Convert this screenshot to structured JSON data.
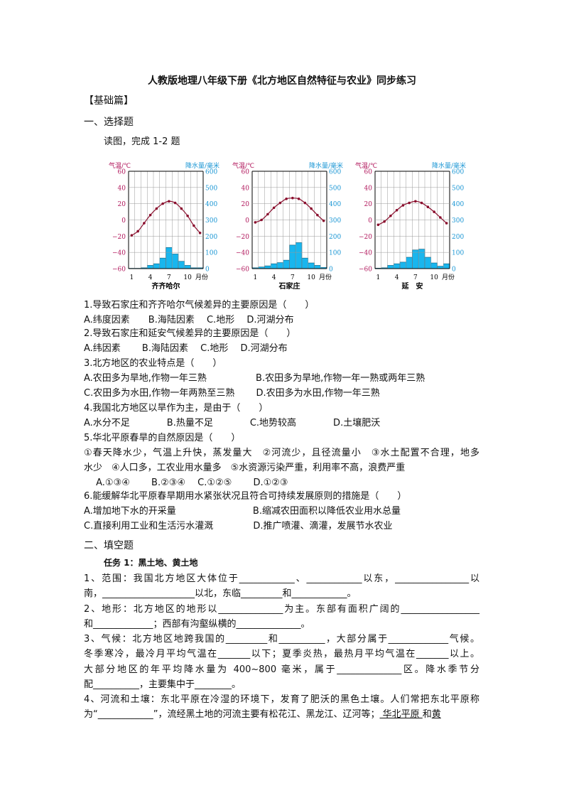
{
  "title": "人教版地理八年级下册《北方地区自然特征与农业》同步练习",
  "section_basic": "【基础篇】",
  "part1": "一、选择题",
  "instruction": "读图，完成 1-2 题",
  "colors": {
    "temp": "#b0145a",
    "precip": "#1a96d4",
    "bar": "#19b6ee",
    "curve": "#8a0f2e"
  },
  "chart_data": [
    {
      "type": "bar+line",
      "station": "齐齐哈尔",
      "ylabel_left": "气温/℃",
      "ylabel_right": "降水量/毫米",
      "x_ticks": [
        "1",
        "4",
        "7",
        "10"
      ],
      "x_unit": "月份",
      "ylim_left": [
        -60,
        60
      ],
      "ylim_right": [
        0,
        600
      ],
      "ticks_left": [
        60,
        40,
        20,
        0,
        -20,
        -40,
        -60
      ],
      "ticks_right": [
        600,
        500,
        400,
        300,
        200,
        100,
        0
      ],
      "grid": true,
      "temperature": [
        -19,
        -14,
        -4,
        6,
        14,
        20,
        23,
        21,
        14,
        5,
        -7,
        -16
      ],
      "precipitation": [
        2,
        2,
        5,
        20,
        30,
        65,
        130,
        90,
        45,
        20,
        5,
        5
      ]
    },
    {
      "type": "bar+line",
      "station": "石家庄",
      "ylabel_left": "气温/℃",
      "ylabel_right": "降水量/毫米",
      "x_ticks": [
        "1",
        "4",
        "7",
        "10"
      ],
      "x_unit": "月份",
      "ylim_left": [
        -60,
        60
      ],
      "ylim_right": [
        0,
        600
      ],
      "ticks_left": [
        60,
        40,
        20,
        0,
        -20,
        -40,
        -60
      ],
      "ticks_right": [
        600,
        500,
        400,
        300,
        200,
        100,
        0
      ],
      "grid": true,
      "temperature": [
        -3,
        0,
        7,
        15,
        21,
        26,
        27,
        26,
        21,
        14,
        6,
        -1
      ],
      "precipitation": [
        5,
        10,
        17,
        30,
        37,
        52,
        145,
        160,
        65,
        35,
        20,
        7
      ]
    },
    {
      "type": "bar+line",
      "station": "延　安",
      "ylabel_left": "气温/℃",
      "ylabel_right": "降水量/毫米",
      "x_ticks": [
        "1",
        "4",
        "7",
        "10"
      ],
      "x_unit": "月份",
      "ylim_left": [
        -60,
        60
      ],
      "ylim_right": [
        0,
        600
      ],
      "ticks_left": [
        60,
        40,
        20,
        0,
        -20,
        -40,
        -60
      ],
      "ticks_right": [
        600,
        500,
        400,
        300,
        200,
        100,
        0
      ],
      "grid": true,
      "temperature": [
        -6,
        -2,
        5,
        12,
        18,
        21,
        23,
        21,
        16,
        10,
        3,
        -4
      ],
      "precipitation": [
        3,
        5,
        20,
        30,
        40,
        70,
        115,
        120,
        70,
        35,
        15,
        30
      ]
    }
  ],
  "questions": [
    "1.导致石家庄和齐齐哈尔气候差异的主要原因是（　　）",
    " A.纬度因素　　B.海陆因素　 C.地形　 D.河湖分布",
    "2.导致石家庄和延安气候差异的主要原因是（　　）",
    " A.纬因素　　 B.海陆因素　 C.地形　 D.河湖分布",
    "3.北方地区的农业特点是（　　）",
    "A.农田多为旱地,作物一年三熟　　　　　 B.农田多为旱地,作物一年一熟或两年三熟",
    "C.农田多为水田,作物一年两熟至三熟　　 D.农田多为水田,作物一年三熟",
    "4.我国北方地区以旱作为主，是由于（　　）",
    "A.水分不足　　　　B.热量不足　　　　C.地势较高　　　　D.土壤肥沃",
    "5.华北平原春旱的自然原因是（　　）",
    "①春天降水少，气温上升快，蒸发量大　②河流少，且径流量小　③水土配置不合理，地多",
    "水少　④人口多，工农业用水量多　⑤水资源污染严重，利用率不高，浪费严重",
    "　 A.①③④　　 B.②③④　 C.①②⑤　　 D.①②③",
    "6.能缓解华北平原春旱期用水紧张状况且符合可持续发展原则的措施是（　　）",
    " A.增加地下水的开采量　　　　　　　　 B.缩减农田面积以降低农业用水总量",
    " C.直接利用工业和生活污水灌溉　　　　 D.推广喷灌、滴灌，发展节水农业"
  ],
  "part2": "二、填空题",
  "task1": "任务 1：黑土地、黄土地",
  "fill": [
    "1、范围：我国北方地区大体位于____________、____________以东，________________以",
    "南，____________________以北，东临_________和____________。",
    "2、地形：北方地区的地形以______________为主。东部有面积广阔的_________________",
    "和_____________；西部有沟壑纵横的______________。",
    "3、气候：北方地区地跨我国的_________和__________，大部分属于_____________气候。",
    "冬季寒冷，最冷月平均气温在_______以下；夏季炎热，最热月平均气温在_______以上。",
    "大部分地区的年平均降水量为 400~800 毫米，属于______________区。降水季节分",
    "配__________，主要集中于________。",
    "4、河流和土壤：东北平原在冷湿的环境下，发育了肥沃的黑色土壤。人们常把东北平原称",
    "为“____________”，流经黑土地的河流主要有松花江、黑龙江、辽河等；"
  ],
  "fill_underlined": [
    "华北平原",
    "和",
    "黄"
  ]
}
